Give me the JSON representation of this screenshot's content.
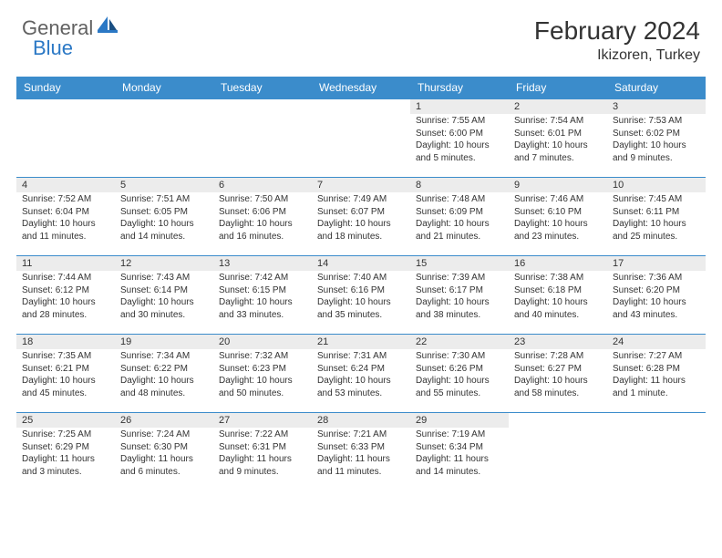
{
  "logo": {
    "text_general": "General",
    "text_blue": "Blue"
  },
  "header": {
    "month_title": "February 2024",
    "location": "Ikizoren, Turkey"
  },
  "colors": {
    "header_bg": "#3b8ccb",
    "header_fg": "#ffffff",
    "daynum_bg": "#ececec",
    "cell_border": "#3b8ccb",
    "text": "#333333",
    "logo_gray": "#616161",
    "logo_blue": "#2b78c5"
  },
  "weekdays": [
    "Sunday",
    "Monday",
    "Tuesday",
    "Wednesday",
    "Thursday",
    "Friday",
    "Saturday"
  ],
  "first_weekday_index": 4,
  "days": [
    {
      "n": 1,
      "sunrise": "7:55 AM",
      "sunset": "6:00 PM",
      "daylight": "10 hours and 5 minutes."
    },
    {
      "n": 2,
      "sunrise": "7:54 AM",
      "sunset": "6:01 PM",
      "daylight": "10 hours and 7 minutes."
    },
    {
      "n": 3,
      "sunrise": "7:53 AM",
      "sunset": "6:02 PM",
      "daylight": "10 hours and 9 minutes."
    },
    {
      "n": 4,
      "sunrise": "7:52 AM",
      "sunset": "6:04 PM",
      "daylight": "10 hours and 11 minutes."
    },
    {
      "n": 5,
      "sunrise": "7:51 AM",
      "sunset": "6:05 PM",
      "daylight": "10 hours and 14 minutes."
    },
    {
      "n": 6,
      "sunrise": "7:50 AM",
      "sunset": "6:06 PM",
      "daylight": "10 hours and 16 minutes."
    },
    {
      "n": 7,
      "sunrise": "7:49 AM",
      "sunset": "6:07 PM",
      "daylight": "10 hours and 18 minutes."
    },
    {
      "n": 8,
      "sunrise": "7:48 AM",
      "sunset": "6:09 PM",
      "daylight": "10 hours and 21 minutes."
    },
    {
      "n": 9,
      "sunrise": "7:46 AM",
      "sunset": "6:10 PM",
      "daylight": "10 hours and 23 minutes."
    },
    {
      "n": 10,
      "sunrise": "7:45 AM",
      "sunset": "6:11 PM",
      "daylight": "10 hours and 25 minutes."
    },
    {
      "n": 11,
      "sunrise": "7:44 AM",
      "sunset": "6:12 PM",
      "daylight": "10 hours and 28 minutes."
    },
    {
      "n": 12,
      "sunrise": "7:43 AM",
      "sunset": "6:14 PM",
      "daylight": "10 hours and 30 minutes."
    },
    {
      "n": 13,
      "sunrise": "7:42 AM",
      "sunset": "6:15 PM",
      "daylight": "10 hours and 33 minutes."
    },
    {
      "n": 14,
      "sunrise": "7:40 AM",
      "sunset": "6:16 PM",
      "daylight": "10 hours and 35 minutes."
    },
    {
      "n": 15,
      "sunrise": "7:39 AM",
      "sunset": "6:17 PM",
      "daylight": "10 hours and 38 minutes."
    },
    {
      "n": 16,
      "sunrise": "7:38 AM",
      "sunset": "6:18 PM",
      "daylight": "10 hours and 40 minutes."
    },
    {
      "n": 17,
      "sunrise": "7:36 AM",
      "sunset": "6:20 PM",
      "daylight": "10 hours and 43 minutes."
    },
    {
      "n": 18,
      "sunrise": "7:35 AM",
      "sunset": "6:21 PM",
      "daylight": "10 hours and 45 minutes."
    },
    {
      "n": 19,
      "sunrise": "7:34 AM",
      "sunset": "6:22 PM",
      "daylight": "10 hours and 48 minutes."
    },
    {
      "n": 20,
      "sunrise": "7:32 AM",
      "sunset": "6:23 PM",
      "daylight": "10 hours and 50 minutes."
    },
    {
      "n": 21,
      "sunrise": "7:31 AM",
      "sunset": "6:24 PM",
      "daylight": "10 hours and 53 minutes."
    },
    {
      "n": 22,
      "sunrise": "7:30 AM",
      "sunset": "6:26 PM",
      "daylight": "10 hours and 55 minutes."
    },
    {
      "n": 23,
      "sunrise": "7:28 AM",
      "sunset": "6:27 PM",
      "daylight": "10 hours and 58 minutes."
    },
    {
      "n": 24,
      "sunrise": "7:27 AM",
      "sunset": "6:28 PM",
      "daylight": "11 hours and 1 minute."
    },
    {
      "n": 25,
      "sunrise": "7:25 AM",
      "sunset": "6:29 PM",
      "daylight": "11 hours and 3 minutes."
    },
    {
      "n": 26,
      "sunrise": "7:24 AM",
      "sunset": "6:30 PM",
      "daylight": "11 hours and 6 minutes."
    },
    {
      "n": 27,
      "sunrise": "7:22 AM",
      "sunset": "6:31 PM",
      "daylight": "11 hours and 9 minutes."
    },
    {
      "n": 28,
      "sunrise": "7:21 AM",
      "sunset": "6:33 PM",
      "daylight": "11 hours and 11 minutes."
    },
    {
      "n": 29,
      "sunrise": "7:19 AM",
      "sunset": "6:34 PM",
      "daylight": "11 hours and 14 minutes."
    }
  ],
  "labels": {
    "sunrise": "Sunrise:",
    "sunset": "Sunset:",
    "daylight": "Daylight:"
  }
}
